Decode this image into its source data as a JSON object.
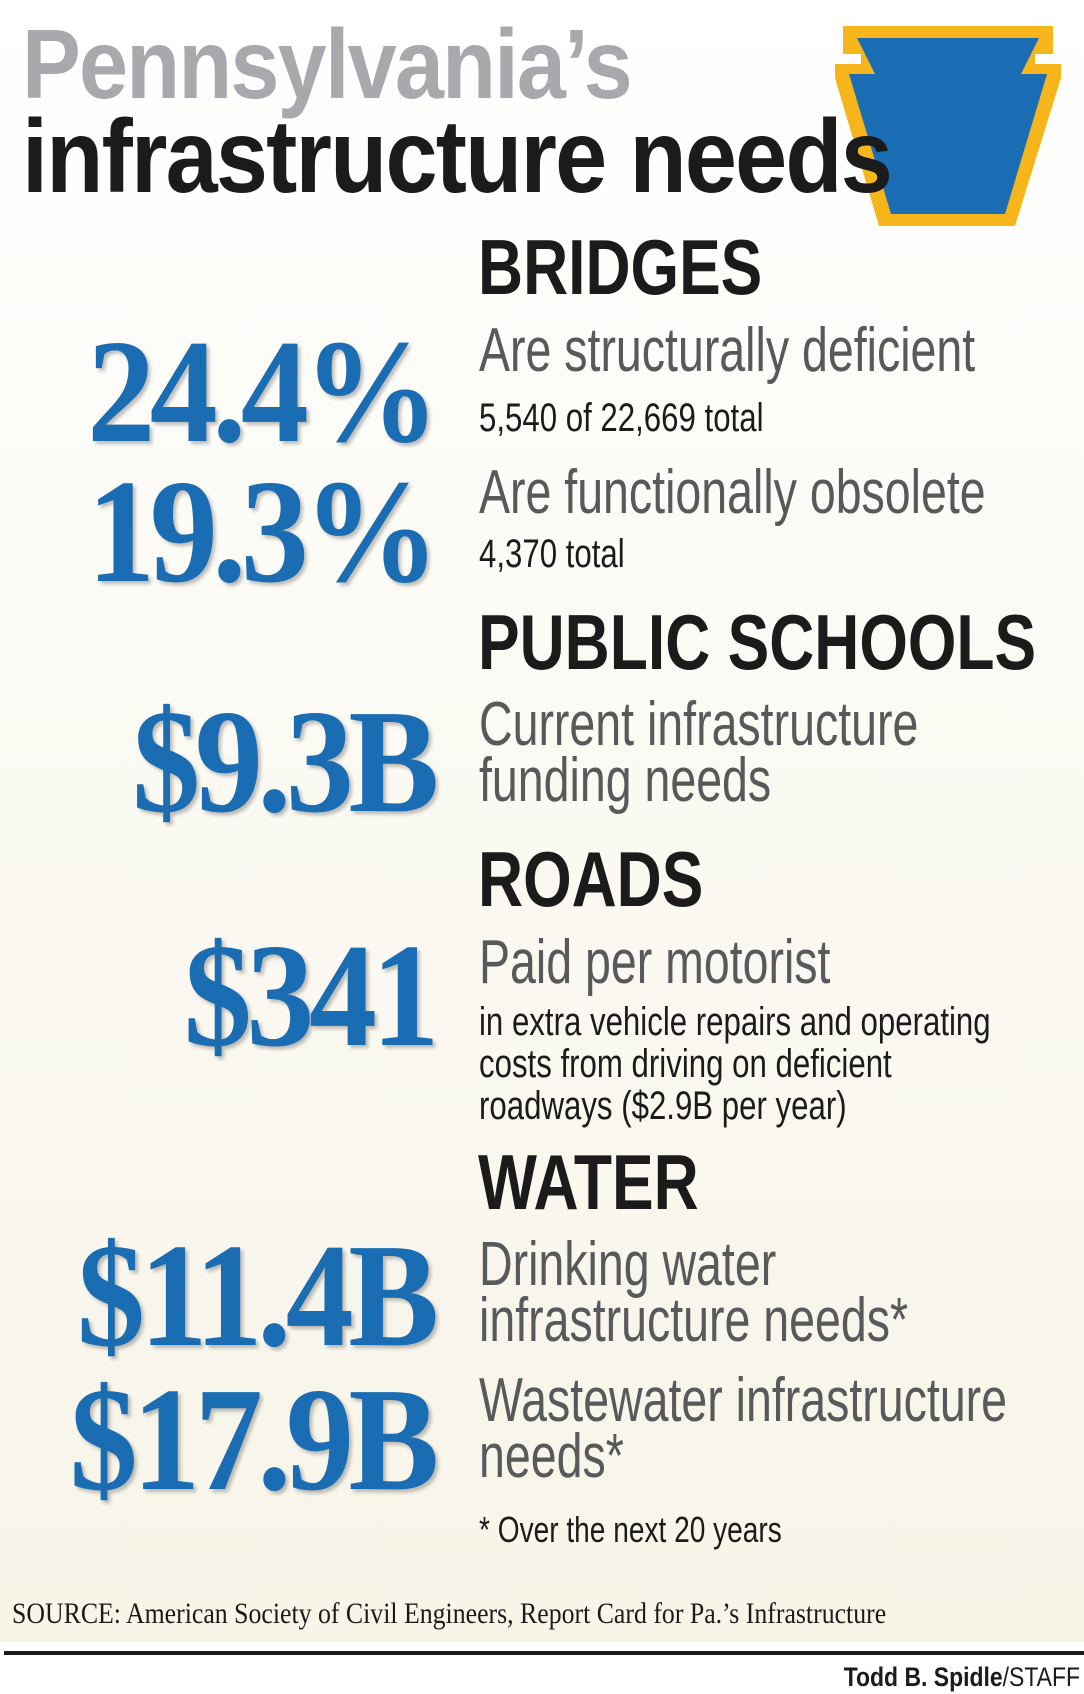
{
  "title": {
    "line1": "Pennsylvania’s",
    "line2": "infrastructure needs"
  },
  "colors": {
    "accent_blue": "#1b6db3",
    "keystone_gold": "#f7b51c",
    "title_gray": "#a7a9ac"
  },
  "logo": {
    "icon": "keystone-icon"
  },
  "sections": {
    "bridges": {
      "heading": "BRIDGES",
      "stats": [
        {
          "value": "24.4%",
          "label": "Are structurally deficient",
          "detail": "5,540 of 22,669 total"
        },
        {
          "value": "19.3%",
          "label": "Are functionally obsolete",
          "detail": "4,370 total"
        }
      ]
    },
    "schools": {
      "heading": "PUBLIC SCHOOLS",
      "stats": [
        {
          "value": "$9.3B",
          "label_lines": [
            "Current infrastructure",
            "funding needs"
          ]
        }
      ]
    },
    "roads": {
      "heading": "ROADS",
      "stats": [
        {
          "value": "$341",
          "label": "Paid per motorist",
          "detail_lines": [
            "in extra vehicle repairs and operating",
            "costs from driving on deficient",
            "roadways ($2.9B per year)"
          ]
        }
      ]
    },
    "water": {
      "heading": "WATER",
      "stats": [
        {
          "value": "$11.4B",
          "label_lines": [
            "Drinking water",
            "infrastructure needs*"
          ]
        },
        {
          "value": "$17.9B",
          "label_lines": [
            "Wastewater infrastructure",
            "needs*"
          ]
        }
      ],
      "footnote": "* Over the next 20 years"
    }
  },
  "source": "SOURCE:  American Society of Civil Engineers, Report Card for Pa.’s Infrastructure",
  "credit": {
    "name": "Todd B. Spidle",
    "suffix": "/STAFF"
  }
}
